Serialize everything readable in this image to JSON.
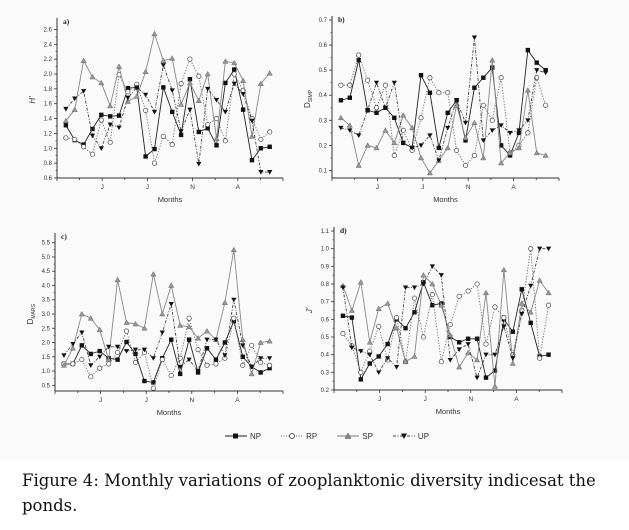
{
  "figure": {
    "legend": [
      {
        "key": "NP",
        "label": "NP",
        "marker": "filled-square",
        "line": "solid"
      },
      {
        "key": "RP",
        "label": "RP",
        "marker": "open-circle",
        "line": "dotted"
      },
      {
        "key": "SP",
        "label": "SP",
        "marker": "filled-triangle-up",
        "line": "solid-gray"
      },
      {
        "key": "UP",
        "label": "UP",
        "marker": "filled-triangle-down",
        "line": "dash-dot"
      }
    ],
    "caption": {
      "label": "Figure 4",
      "text": ": Monthly variations of zooplanktonic diversity indicesat the ponds."
    }
  },
  "chart_data": [
    {
      "id": "a",
      "type": "line",
      "panel_label": "a)",
      "title": "",
      "xlabel": "Months",
      "ylabel": "H'",
      "ylim": [
        0.6,
        2.7
      ],
      "yticks": [
        "0.6",
        "0.8",
        "1.0",
        "1.2",
        "1.4",
        "1.6",
        "1.8",
        "2.0",
        "2.2",
        "2.4",
        "2.6"
      ],
      "x_tick_labels": [
        {
          "pos": 5,
          "label": "J"
        },
        {
          "pos": 10,
          "label": "J"
        },
        {
          "pos": 15,
          "label": "N"
        },
        {
          "pos": 20,
          "label": "A"
        }
      ],
      "x_count": 25,
      "grid": false,
      "series": [
        {
          "name": "NP",
          "values": [
            1.31,
            1.11,
            1.05,
            1.26,
            1.45,
            1.43,
            1.44,
            1.81,
            1.82,
            0.89,
            0.99,
            1.82,
            1.49,
            1.18,
            1.93,
            1.22,
            1.27,
            1.04,
            1.88,
            2.06,
            1.52,
            0.84,
            1.0,
            1.02
          ]
        },
        {
          "name": "RP",
          "values": [
            1.14,
            1.12,
            1.02,
            0.92,
            1.38,
            1.08,
            1.99,
            1.76,
            1.86,
            1.51,
            0.8,
            1.16,
            1.05,
            1.87,
            2.2,
            1.97,
            1.32,
            1.4,
            1.1,
            2.0,
            1.78,
            1.4,
            1.12,
            1.22
          ]
        },
        {
          "name": "SP",
          "values": [
            1.37,
            1.52,
            2.18,
            1.96,
            1.88,
            1.57,
            2.1,
            1.63,
            1.7,
            2.03,
            2.54,
            2.18,
            2.21,
            1.59,
            1.88,
            1.64,
            2.0,
            1.13,
            2.17,
            2.15,
            1.91,
            1.16,
            1.87,
            2.01
          ]
        },
        {
          "name": "UP",
          "values": [
            1.53,
            1.67,
            1.77,
            1.17,
            1.0,
            1.32,
            1.28,
            1.68,
            1.82,
            1.72,
            1.49,
            2.12,
            1.78,
            1.23,
            1.52,
            0.79,
            1.8,
            1.65,
            1.49,
            1.87,
            1.73,
            1.37,
            0.68,
            0.68
          ]
        }
      ]
    },
    {
      "id": "b",
      "type": "line",
      "panel_label": "b)",
      "title": "",
      "xlabel": "Months",
      "ylabel": "D_SIMP",
      "ylim": [
        0.07,
        0.7
      ],
      "yticks": [
        "0.1",
        "0.2",
        "0.3",
        "0.4",
        "0.5",
        "0.6",
        "0.7"
      ],
      "x_tick_labels": [
        {
          "pos": 5,
          "label": "J"
        },
        {
          "pos": 10,
          "label": "J"
        },
        {
          "pos": 15,
          "label": "N"
        },
        {
          "pos": 20,
          "label": "A"
        }
      ],
      "x_count": 25,
      "grid": false,
      "series": [
        {
          "name": "NP",
          "values": [
            0.38,
            0.39,
            0.54,
            0.34,
            0.33,
            0.35,
            0.31,
            0.21,
            0.19,
            0.48,
            0.41,
            0.19,
            0.33,
            0.38,
            0.22,
            0.43,
            0.47,
            0.51,
            0.2,
            0.16,
            0.25,
            0.58,
            0.53,
            0.5
          ]
        },
        {
          "name": "RP",
          "values": [
            0.44,
            0.44,
            0.56,
            0.46,
            0.35,
            0.44,
            0.16,
            0.26,
            0.18,
            0.31,
            0.47,
            0.41,
            0.41,
            0.18,
            0.12,
            0.16,
            0.36,
            0.3,
            0.47,
            0.17,
            0.2,
            0.25,
            0.47,
            0.36
          ]
        },
        {
          "name": "SP",
          "values": [
            0.31,
            0.28,
            0.12,
            0.2,
            0.19,
            0.26,
            0.21,
            0.32,
            0.27,
            0.15,
            0.09,
            0.14,
            0.19,
            0.36,
            0.23,
            0.29,
            0.15,
            0.54,
            0.13,
            0.17,
            0.19,
            0.42,
            0.17,
            0.16
          ]
        },
        {
          "name": "UP",
          "values": [
            0.27,
            0.26,
            0.24,
            0.34,
            0.45,
            0.35,
            0.45,
            0.21,
            0.19,
            0.2,
            0.24,
            0.14,
            0.27,
            0.38,
            0.29,
            0.63,
            0.22,
            0.26,
            0.28,
            0.25,
            0.26,
            0.3,
            0.5,
            0.49
          ]
        }
      ]
    },
    {
      "id": "c",
      "type": "line",
      "panel_label": "c)",
      "title": "",
      "xlabel": "Months",
      "ylabel": "D_MARG",
      "ylim": [
        0.3,
        5.7
      ],
      "yticks": [
        "0.5",
        "1.0",
        "1.5",
        "2.0",
        "2.5",
        "3.0",
        "3.5",
        "4.0",
        "4.5",
        "5.0",
        "5.5"
      ],
      "x_tick_labels": [
        {
          "pos": 5,
          "label": "J"
        },
        {
          "pos": 10,
          "label": "J"
        },
        {
          "pos": 15,
          "label": "N"
        },
        {
          "pos": 20,
          "label": "A"
        }
      ],
      "x_count": 25,
      "grid": false,
      "series": [
        {
          "name": "NP",
          "values": [
            1.25,
            1.25,
            1.9,
            1.6,
            1.7,
            1.45,
            1.4,
            2.02,
            1.6,
            0.65,
            0.6,
            1.45,
            2.1,
            0.9,
            2.1,
            0.95,
            1.8,
            1.4,
            2.0,
            2.75,
            1.5,
            1.15,
            0.95,
            1.1
          ]
        },
        {
          "name": "RP",
          "values": [
            1.25,
            1.25,
            1.4,
            0.8,
            1.1,
            1.25,
            1.65,
            2.4,
            1.3,
            1.65,
            0.4,
            1.4,
            0.85,
            1.45,
            2.85,
            1.75,
            1.2,
            1.25,
            1.45,
            2.85,
            1.2,
            1.9,
            1.3,
            1.2
          ]
        },
        {
          "name": "SP",
          "values": [
            1.2,
            1.8,
            3.0,
            2.85,
            2.45,
            1.4,
            4.2,
            2.7,
            2.65,
            2.5,
            4.4,
            3.0,
            4.0,
            2.6,
            2.55,
            2.15,
            2.4,
            2.1,
            3.4,
            5.25,
            2.1,
            0.9,
            2.0,
            2.05
          ]
        },
        {
          "name": "UP",
          "values": [
            1.55,
            1.95,
            2.35,
            1.2,
            1.5,
            1.85,
            1.85,
            1.7,
            1.75,
            1.75,
            1.45,
            2.35,
            3.35,
            1.15,
            1.4,
            1.0,
            2.1,
            2.1,
            1.55,
            3.5,
            1.9,
            1.15,
            1.45,
            1.45
          ]
        }
      ]
    },
    {
      "id": "d",
      "type": "line",
      "panel_label": "d)",
      "title": "",
      "xlabel": "Months",
      "ylabel": "J'",
      "ylim": [
        0.2,
        1.1
      ],
      "yticks": [
        "0.2",
        "0.3",
        "0.4",
        "0.5",
        "0.6",
        "0.7",
        "0.8",
        "0.9",
        "1.0",
        "1.1"
      ],
      "x_tick_labels": [
        {
          "pos": 5,
          "label": "J"
        },
        {
          "pos": 10,
          "label": "J"
        },
        {
          "pos": 15,
          "label": "N"
        },
        {
          "pos": 20,
          "label": "A"
        }
      ],
      "x_count": 25,
      "grid": false,
      "series": [
        {
          "name": "NP",
          "values": [
            0.62,
            0.61,
            0.26,
            0.35,
            0.39,
            0.46,
            0.6,
            0.55,
            0.64,
            0.81,
            0.68,
            0.69,
            0.5,
            0.47,
            0.49,
            0.49,
            0.27,
            0.31,
            0.6,
            0.53,
            0.77,
            0.58,
            0.39,
            0.4
          ]
        },
        {
          "name": "RP",
          "values": [
            0.52,
            0.45,
            0.3,
            0.42,
            0.56,
            0.37,
            0.61,
            0.36,
            0.72,
            0.5,
            0.74,
            0.36,
            0.57,
            0.73,
            0.76,
            0.8,
            0.46,
            0.67,
            0.61,
            0.4,
            0.65,
            1.0,
            0.38,
            0.68
          ]
        },
        {
          "name": "SP",
          "values": [
            0.79,
            0.65,
            0.81,
            0.47,
            0.66,
            0.69,
            0.55,
            0.36,
            0.39,
            0.85,
            0.8,
            0.68,
            0.51,
            0.33,
            0.41,
            0.37,
            0.75,
            0.22,
            0.88,
            0.35,
            0.69,
            0.64,
            0.82,
            0.75
          ]
        },
        {
          "name": "UP",
          "values": [
            0.78,
            0.44,
            0.42,
            0.4,
            0.3,
            0.38,
            0.33,
            0.78,
            0.78,
            0.8,
            0.9,
            0.85,
            0.37,
            0.43,
            0.46,
            0.27,
            0.4,
            0.4,
            0.56,
            0.38,
            0.63,
            0.79,
            1.0,
            1.0
          ]
        }
      ]
    }
  ]
}
